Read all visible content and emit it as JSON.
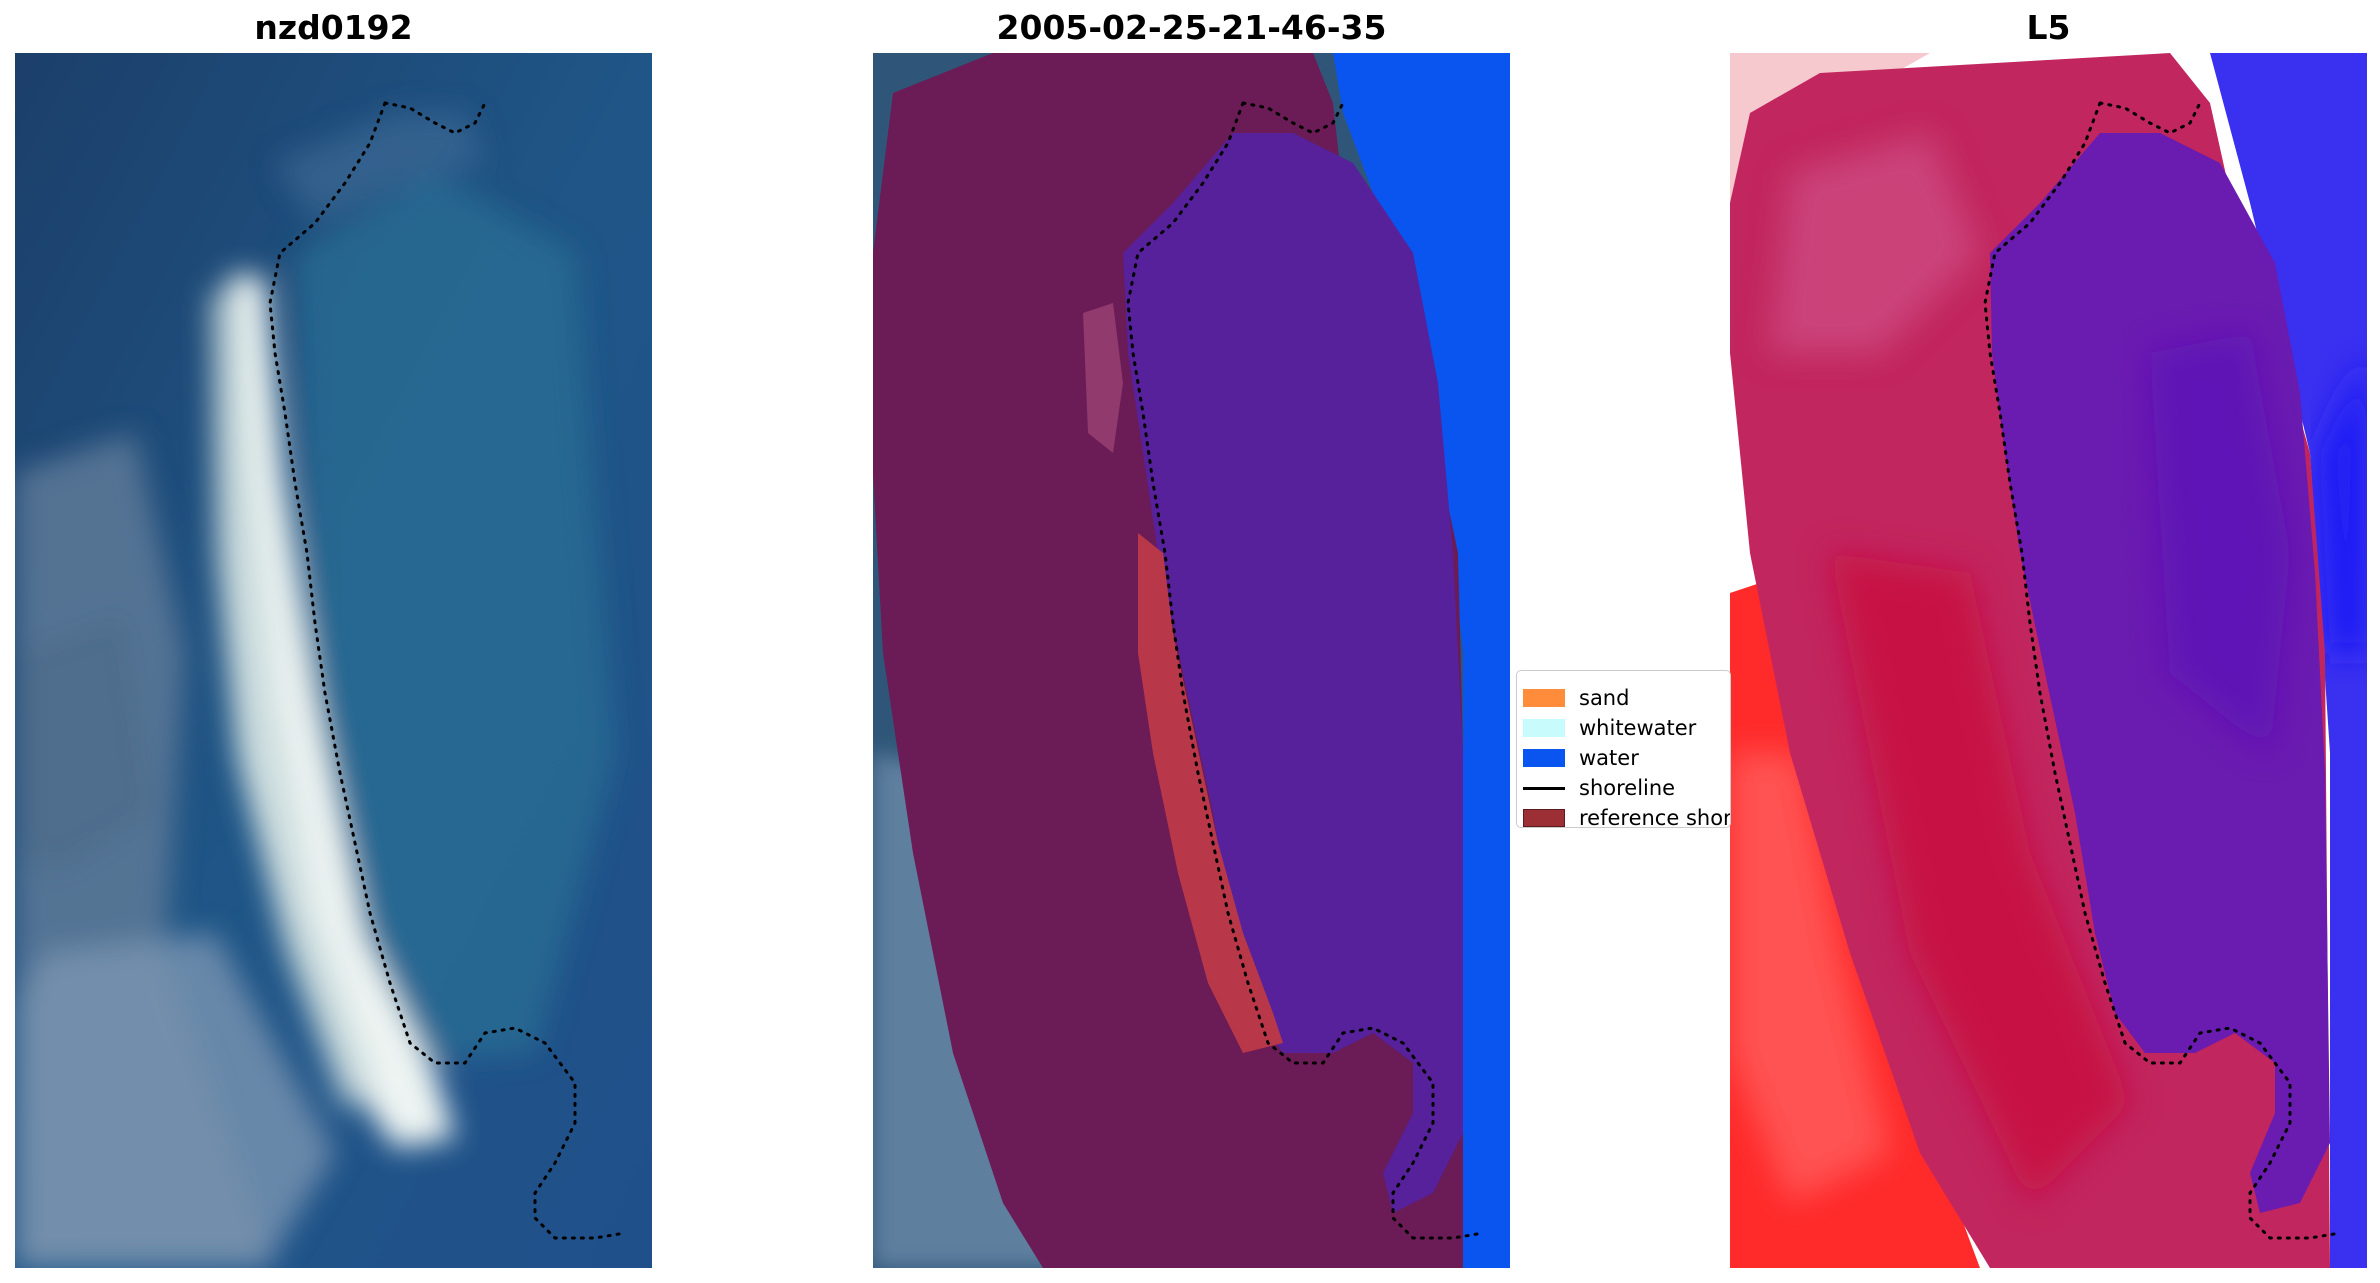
{
  "panels": [
    {
      "title": "nzd0192"
    },
    {
      "title": "2005-02-25-21-46-35"
    },
    {
      "title": "L5"
    }
  ],
  "legend": {
    "items": [
      {
        "label": "sand",
        "color": "#ff8c3a"
      },
      {
        "label": "whitewater",
        "color": "#c8fbfb"
      },
      {
        "label": "water",
        "color": "#0a55f0"
      },
      {
        "label": "shoreline",
        "color": "#000000"
      },
      {
        "label": "reference shoreline buffer",
        "color": "#9b2f35"
      }
    ]
  },
  "colors": {
    "ocean": "#1d4e7f",
    "land_buffer": "#6b1b55",
    "water_class": "#0a55f0",
    "water_index_low": "#e21744",
    "water_index_high": "#5a1ea8"
  }
}
